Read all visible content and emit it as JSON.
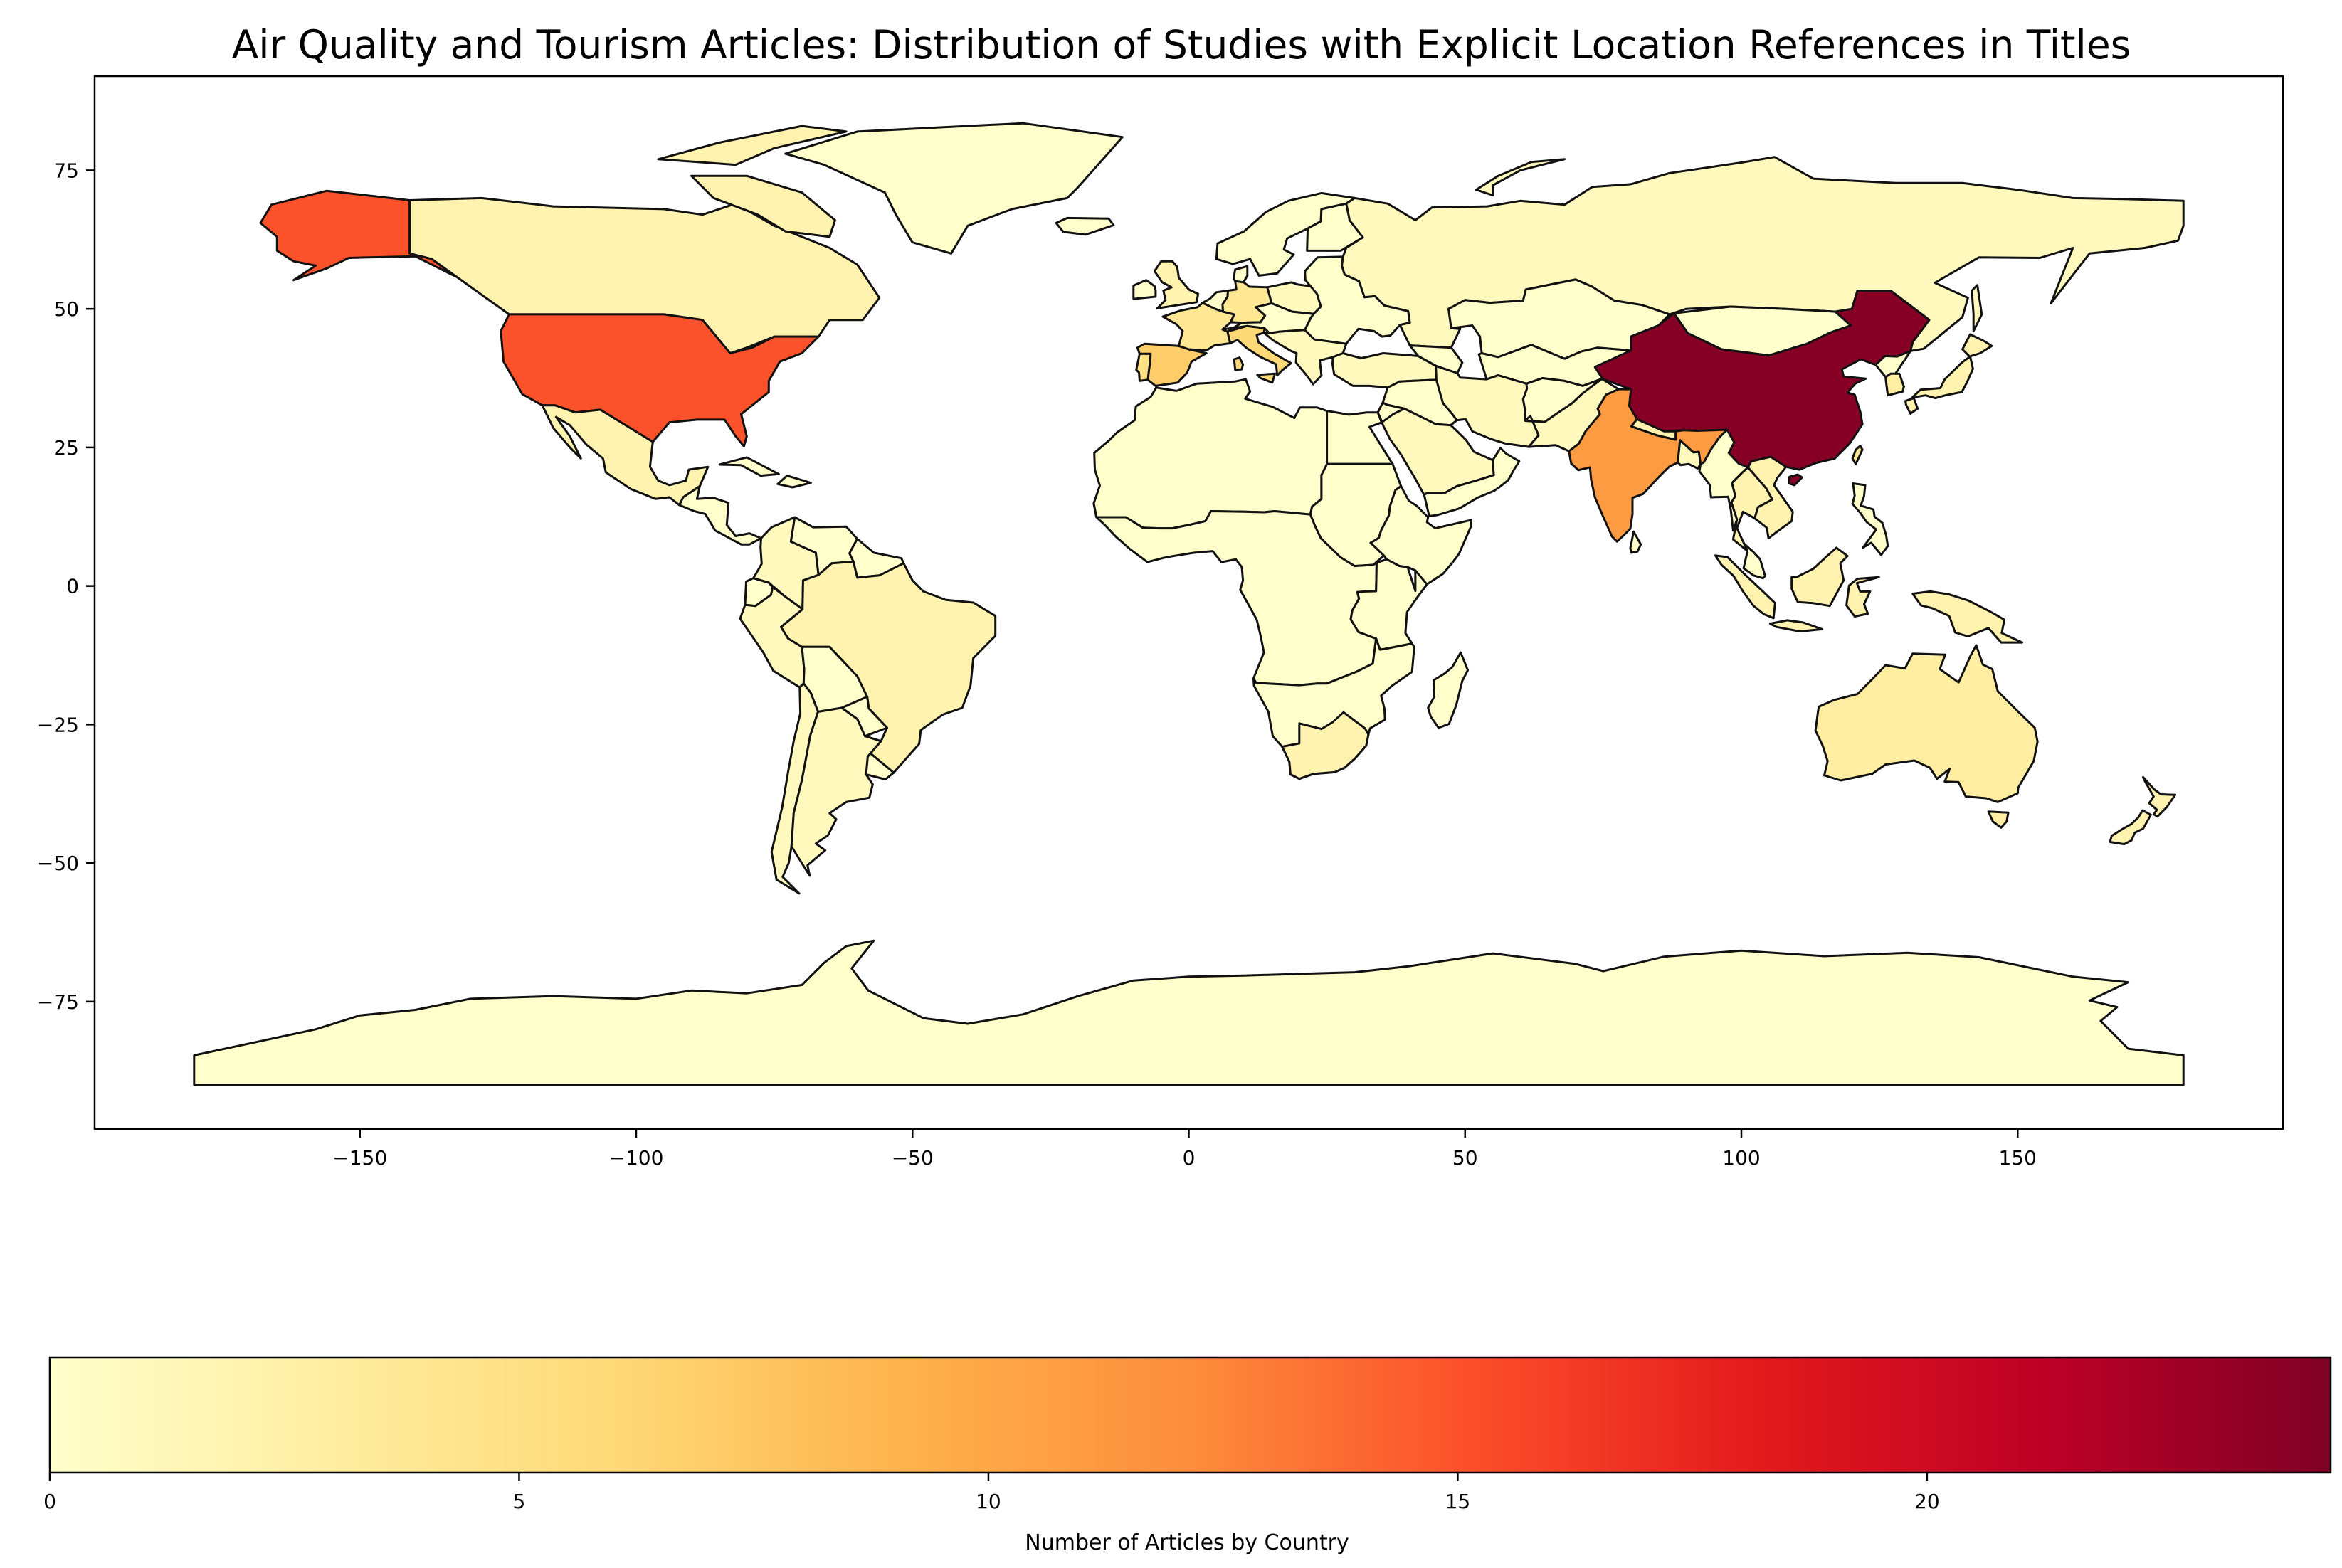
{
  "chart_data": {
    "type": "choropleth",
    "title": "Air Quality and Tourism Articles: Distribution of Studies with Explicit Location References in Titles",
    "xlim": [
      -198,
      198
    ],
    "ylim": [
      -98,
      92
    ],
    "x_ticks": [
      -150,
      -100,
      -50,
      0,
      50,
      100,
      150
    ],
    "y_ticks": [
      75,
      50,
      25,
      0,
      -25,
      -50,
      -75
    ],
    "colorbar": {
      "label": "Number of Articles by Country",
      "range": [
        0,
        24.3
      ],
      "ticks": [
        0,
        5,
        10,
        15,
        20
      ],
      "colormap": "YlOrRd",
      "placement": "bottom"
    },
    "countries": [
      {
        "name": "China",
        "value": 24
      },
      {
        "name": "United States",
        "value": 15
      },
      {
        "name": "India",
        "value": 11
      },
      {
        "name": "Spain",
        "value": 7
      },
      {
        "name": "Italy",
        "value": 6
      },
      {
        "name": "France",
        "value": 4
      },
      {
        "name": "Germany",
        "value": 4
      },
      {
        "name": "Portugal",
        "value": 5
      },
      {
        "name": "Australia",
        "value": 3
      },
      {
        "name": "Canada",
        "value": 2
      },
      {
        "name": "Brazil",
        "value": 2
      },
      {
        "name": "Mexico",
        "value": 2
      },
      {
        "name": "Japan",
        "value": 2
      },
      {
        "name": "South Korea",
        "value": 3
      },
      {
        "name": "Taiwan",
        "value": 4
      },
      {
        "name": "Thailand",
        "value": 2
      },
      {
        "name": "Vietnam",
        "value": 2
      },
      {
        "name": "Indonesia",
        "value": 2
      },
      {
        "name": "New Zealand",
        "value": 2
      },
      {
        "name": "South Africa",
        "value": 2
      },
      {
        "name": "Chile",
        "value": 1
      },
      {
        "name": "Peru",
        "value": 1
      },
      {
        "name": "Colombia",
        "value": 1
      },
      {
        "name": "Argentina",
        "value": 1
      },
      {
        "name": "Russia",
        "value": 1
      },
      {
        "name": "Turkey",
        "value": 1
      },
      {
        "name": "Iran",
        "value": 1
      },
      {
        "name": "Saudi Arabia",
        "value": 1
      },
      {
        "name": "Pakistan",
        "value": 1
      },
      {
        "name": "United Kingdom",
        "value": 2
      },
      {
        "name": "Greece",
        "value": 1
      },
      {
        "name": "Poland",
        "value": 1
      },
      {
        "name": "Bangladesh",
        "value": 1
      },
      {
        "name": "Nepal",
        "value": 2
      },
      {
        "name": "Kazakhstan",
        "value": 0
      },
      {
        "name": "Mongolia",
        "value": 0
      },
      {
        "name": "Egypt",
        "value": 0
      },
      {
        "name": "Greenland",
        "value": 0
      },
      {
        "name": "Antarctica",
        "value": 0
      }
    ]
  }
}
